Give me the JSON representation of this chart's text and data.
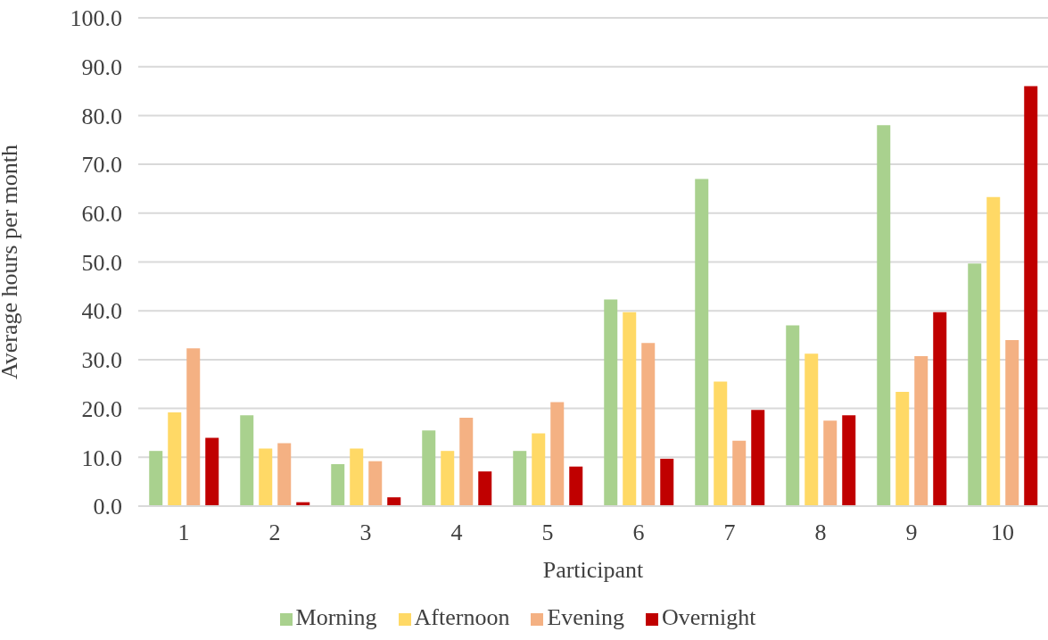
{
  "chart_data": {
    "type": "bar",
    "xlabel": "Participant",
    "ylabel": "Average hours per month",
    "categories": [
      "1",
      "2",
      "3",
      "4",
      "5",
      "6",
      "7",
      "8",
      "9",
      "10"
    ],
    "series": [
      {
        "name": "Morning",
        "color": "#a9d18e",
        "values": [
          11.3,
          18.6,
          8.6,
          15.5,
          11.3,
          42.3,
          67.0,
          37.0,
          78.0,
          49.7
        ]
      },
      {
        "name": "Afternoon",
        "color": "#ffd966",
        "values": [
          19.2,
          11.8,
          11.8,
          11.3,
          14.9,
          39.7,
          25.5,
          31.2,
          23.4,
          63.3
        ]
      },
      {
        "name": "Evening",
        "color": "#f4b183",
        "values": [
          32.3,
          12.9,
          9.2,
          18.1,
          21.3,
          33.4,
          13.4,
          17.5,
          30.7,
          34.0
        ]
      },
      {
        "name": "Overnight",
        "color": "#c00000",
        "values": [
          14.0,
          0.8,
          1.8,
          7.1,
          8.1,
          9.7,
          19.7,
          18.6,
          39.7,
          86.0
        ]
      }
    ],
    "ylim": [
      0,
      100
    ],
    "yticks": [
      {
        "value": 0,
        "label": "0.0"
      },
      {
        "value": 10,
        "label": "10.0"
      },
      {
        "value": 20,
        "label": "20.0"
      },
      {
        "value": 30,
        "label": "30.0"
      },
      {
        "value": 40,
        "label": "40.0"
      },
      {
        "value": 50,
        "label": "50.0"
      },
      {
        "value": 60,
        "label": "60.0"
      },
      {
        "value": 70,
        "label": "70.0"
      },
      {
        "value": 80,
        "label": "80.0"
      },
      {
        "value": 90,
        "label": "90.0"
      },
      {
        "value": 100,
        "label": "100.0"
      }
    ],
    "grid": "y",
    "legend": "bottom"
  }
}
